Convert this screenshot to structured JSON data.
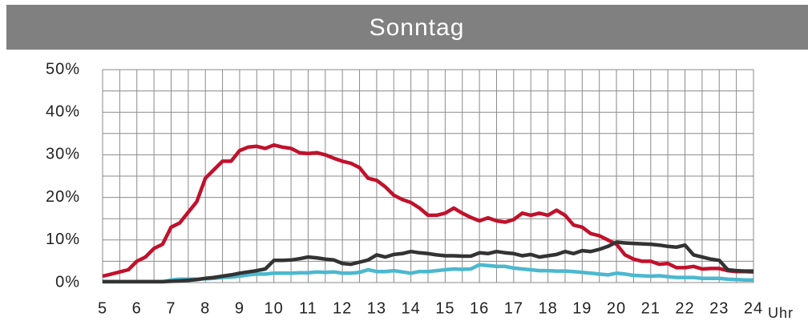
{
  "chart_data": {
    "type": "line",
    "title": "Sonntag",
    "x_label": "Uhr",
    "x": [
      5,
      5.25,
      5.5,
      5.75,
      6,
      6.25,
      6.5,
      6.75,
      7,
      7.25,
      7.5,
      7.75,
      8,
      8.25,
      8.5,
      8.75,
      9,
      9.25,
      9.5,
      9.75,
      10,
      10.25,
      10.5,
      10.75,
      11,
      11.25,
      11.5,
      11.75,
      12,
      12.25,
      12.5,
      12.75,
      13,
      13.25,
      13.5,
      13.75,
      14,
      14.25,
      14.5,
      14.75,
      15,
      15.25,
      15.5,
      15.75,
      16,
      16.25,
      16.5,
      16.75,
      17,
      17.25,
      17.5,
      17.75,
      18,
      18.25,
      18.5,
      18.75,
      19,
      19.25,
      19.5,
      19.75,
      20,
      20.25,
      20.5,
      20.75,
      21,
      21.25,
      21.5,
      21.75,
      22,
      22.25,
      22.5,
      22.75,
      23,
      23.25,
      23.5,
      23.75,
      24
    ],
    "series": [
      {
        "color": "#4bb8cf",
        "values": [
          0.2,
          0.2,
          0.2,
          0.2,
          0.2,
          0.2,
          0.2,
          0.2,
          0.6,
          0.8,
          0.8,
          0.8,
          0.9,
          1,
          1.2,
          1.3,
          1.5,
          1.8,
          2,
          2,
          2.2,
          2.2,
          2.2,
          2.3,
          2.3,
          2.5,
          2.4,
          2.5,
          2.2,
          2.2,
          2.4,
          3,
          2.6,
          2.6,
          2.8,
          2.5,
          2.2,
          2.6,
          2.6,
          2.8,
          3,
          3.2,
          3.1,
          3.2,
          4.2,
          4,
          3.8,
          3.8,
          3.4,
          3.2,
          3,
          2.8,
          2.8,
          2.7,
          2.7,
          2.6,
          2.4,
          2.2,
          2,
          1.8,
          2.2,
          2,
          1.7,
          1.6,
          1.5,
          1.6,
          1.4,
          1.2,
          1.2,
          1.2,
          1,
          1,
          1,
          0.8,
          0.7,
          0.6,
          0.6
        ]
      },
      {
        "color": "#c1112c",
        "values": [
          1.5,
          2,
          2.5,
          3,
          5,
          6,
          8,
          9,
          13,
          14,
          16.5,
          19,
          24.5,
          26.5,
          28.5,
          28.5,
          31,
          31.8,
          32,
          31.5,
          32.3,
          31.8,
          31.5,
          30.5,
          30.3,
          30.5,
          30,
          29.2,
          28.5,
          28,
          27,
          24.5,
          24,
          22.5,
          20.5,
          19.5,
          18.8,
          17.5,
          15.8,
          15.8,
          16.3,
          17.5,
          16.3,
          15.3,
          14.5,
          15.2,
          14.5,
          14.2,
          14.8,
          16.3,
          15.8,
          16.3,
          15.8,
          17,
          15.8,
          13.5,
          13,
          11.5,
          11,
          10,
          9,
          6.5,
          5.5,
          5,
          5,
          4.3,
          4.5,
          3.5,
          3.5,
          3.8,
          3.2,
          3.3,
          3.3,
          2.8,
          2.6,
          2.6,
          2.5
        ]
      },
      {
        "color": "#333333",
        "values": [
          0.2,
          0.2,
          0.2,
          0.2,
          0.2,
          0.2,
          0.2,
          0.2,
          0.3,
          0.4,
          0.5,
          0.7,
          1,
          1.2,
          1.5,
          1.8,
          2.2,
          2.5,
          2.8,
          3.2,
          5.2,
          5.2,
          5.3,
          5.6,
          6,
          5.8,
          5.5,
          5.3,
          4.5,
          4.3,
          4.8,
          5.3,
          6.5,
          6,
          6.6,
          6.8,
          7.3,
          7,
          6.8,
          6.5,
          6.3,
          6.3,
          6.2,
          6.2,
          7,
          6.8,
          7.3,
          7,
          6.8,
          6.3,
          6.6,
          6,
          6.3,
          6.6,
          7.3,
          6.8,
          7.5,
          7.3,
          7.8,
          8.5,
          9.5,
          9.3,
          9.2,
          9.1,
          9,
          8.8,
          8.5,
          8.3,
          8.8,
          6.5,
          6,
          5.5,
          5.2,
          3,
          2.8,
          2.7,
          2.7
        ]
      }
    ],
    "xlim": [
      5,
      24
    ],
    "xticks": [
      5,
      6,
      7,
      8,
      9,
      10,
      11,
      12,
      13,
      14,
      15,
      16,
      17,
      18,
      19,
      20,
      21,
      22,
      23,
      24
    ],
    "ylim": [
      0,
      50
    ],
    "yticks": [
      {
        "value": 0,
        "label": "0%"
      },
      {
        "value": 10,
        "label": "10%"
      },
      {
        "value": 20,
        "label": "20%"
      },
      {
        "value": 30,
        "label": "30%"
      },
      {
        "value": 40,
        "label": "40%"
      },
      {
        "value": 50,
        "label": "50%"
      }
    ],
    "grid": true
  }
}
